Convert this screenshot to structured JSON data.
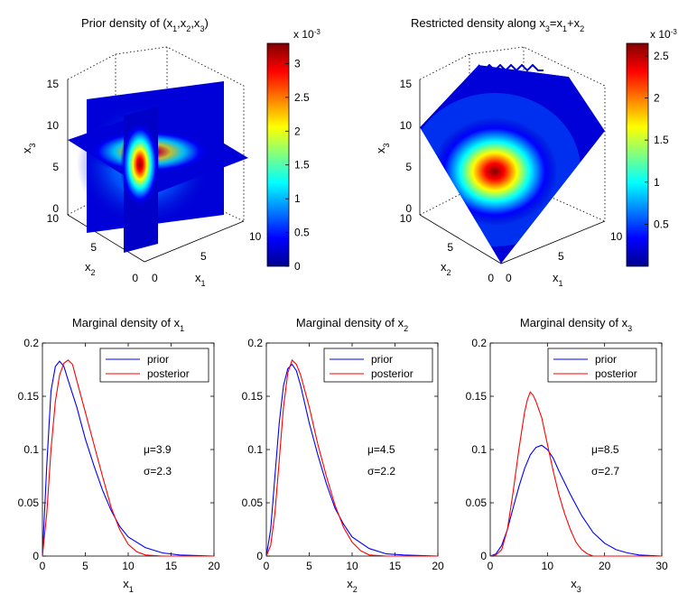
{
  "figure": {
    "panel1": {
      "title_main": "Prior density of (x",
      "title_sub": [
        "1",
        "2",
        "3"
      ],
      "sep1": ",x",
      "sep2": ",x",
      "tail": ")",
      "x3_label": "x",
      "x3_sub": "3",
      "x2_label": "x",
      "x2_sub": "2",
      "x1_label": "x",
      "x1_sub": "1",
      "x3_ticks": [
        "15",
        "10",
        "5",
        "0"
      ],
      "x2_ticks": [
        "10",
        "5",
        "0"
      ],
      "x1_ticks": [
        "0",
        "5",
        "10"
      ],
      "colorbar": {
        "multiplier": "x 10",
        "exponent": "-3",
        "ticks": [
          "3",
          "2.5",
          "2",
          "1.5",
          "1",
          "0.5",
          "0"
        ],
        "range": [
          0,
          3.3
        ]
      }
    },
    "panel2": {
      "title_main": "Restricted density along x",
      "title_sub": "3",
      "eq": "=x",
      "sub1": "1",
      "plus": "+x",
      "sub2": "2",
      "x3_label": "x",
      "x3_sub": "3",
      "x2_label": "x",
      "x2_sub": "2",
      "x1_label": "x",
      "x1_sub": "1",
      "x3_ticks": [
        "15",
        "10",
        "5",
        "0"
      ],
      "x2_ticks": [
        "10",
        "5",
        "0"
      ],
      "x1_ticks": [
        "0",
        "5",
        "10"
      ],
      "colorbar": {
        "multiplier": "x 10",
        "exponent": "-3",
        "ticks": [
          "2.5",
          "2",
          "1.5",
          "1",
          "0.5"
        ],
        "range": [
          0,
          2.65
        ]
      }
    }
  },
  "colors": {
    "prior": "#0000ff",
    "posterior": "#ff0000"
  },
  "chart_data": [
    {
      "type": "line",
      "title": "Marginal density of x",
      "title_sub": "1",
      "xlabel": "x",
      "xlabel_sub": "1",
      "xlim": [
        0,
        20
      ],
      "ylim": [
        0,
        0.2
      ],
      "xticks": [
        0,
        5,
        10,
        15,
        20
      ],
      "yticks": [
        0,
        0.05,
        0.1,
        0.15,
        0.2
      ],
      "legend": [
        "prior",
        "posterior"
      ],
      "mu_text": "μ=3.9",
      "sigma_text": "σ=2.3",
      "series": [
        {
          "name": "prior",
          "color": "#0000ff",
          "x": [
            0,
            0.5,
            1,
            1.5,
            2,
            2.5,
            3,
            4,
            5,
            6,
            7,
            8,
            9,
            10,
            12,
            14,
            16,
            20
          ],
          "y": [
            0,
            0.085,
            0.155,
            0.178,
            0.183,
            0.178,
            0.165,
            0.14,
            0.11,
            0.085,
            0.062,
            0.043,
            0.028,
            0.018,
            0.008,
            0.003,
            0.001,
            0
          ]
        },
        {
          "name": "posterior",
          "color": "#ff0000",
          "x": [
            0,
            0.5,
            1,
            1.5,
            2,
            2.5,
            3,
            3.5,
            4,
            5,
            6,
            7,
            8,
            9,
            10,
            11,
            12,
            14,
            20
          ],
          "y": [
            0,
            0.04,
            0.1,
            0.145,
            0.17,
            0.181,
            0.184,
            0.18,
            0.165,
            0.135,
            0.105,
            0.075,
            0.046,
            0.025,
            0.011,
            0.004,
            0.001,
            0,
            0
          ]
        }
      ]
    },
    {
      "type": "line",
      "title": "Marginal density of x",
      "title_sub": "2",
      "xlabel": "x",
      "xlabel_sub": "2",
      "xlim": [
        0,
        20
      ],
      "ylim": [
        0,
        0.2
      ],
      "xticks": [
        0,
        5,
        10,
        15,
        20
      ],
      "yticks": [
        0,
        0.05,
        0.1,
        0.15,
        0.2
      ],
      "legend": [
        "prior",
        "posterior"
      ],
      "mu_text": "μ=4.5",
      "sigma_text": "σ=2.2",
      "series": [
        {
          "name": "prior",
          "color": "#0000ff",
          "x": [
            0,
            0.5,
            1,
            1.5,
            2,
            2.5,
            3,
            3.5,
            4,
            5,
            6,
            7,
            8,
            9,
            10,
            12,
            14,
            16,
            20
          ],
          "y": [
            0,
            0.025,
            0.075,
            0.125,
            0.16,
            0.176,
            0.18,
            0.174,
            0.16,
            0.125,
            0.095,
            0.068,
            0.045,
            0.03,
            0.018,
            0.007,
            0.002,
            0.001,
            0
          ]
        },
        {
          "name": "posterior",
          "color": "#ff0000",
          "x": [
            0,
            0.5,
            1,
            1.5,
            2,
            2.5,
            3,
            3.5,
            4,
            5,
            6,
            7,
            8,
            9,
            10,
            11,
            12,
            14,
            20
          ],
          "y": [
            0,
            0.01,
            0.04,
            0.09,
            0.14,
            0.172,
            0.184,
            0.18,
            0.17,
            0.14,
            0.105,
            0.075,
            0.048,
            0.027,
            0.013,
            0.005,
            0.001,
            0,
            0
          ]
        }
      ]
    },
    {
      "type": "line",
      "title": "Marginal density of x",
      "title_sub": "3",
      "xlabel": "x",
      "xlabel_sub": "3",
      "xlim": [
        0,
        30
      ],
      "ylim": [
        0,
        0.2
      ],
      "xticks": [
        0,
        10,
        20,
        30
      ],
      "yticks": [
        0,
        0.05,
        0.1,
        0.15,
        0.2
      ],
      "legend": [
        "prior",
        "posterior"
      ],
      "mu_text": "μ=8.5",
      "sigma_text": "σ=2.7",
      "series": [
        {
          "name": "prior",
          "color": "#0000ff",
          "x": [
            0,
            1,
            2,
            3,
            4,
            5,
            6,
            7,
            8,
            9,
            10,
            11,
            12,
            14,
            16,
            18,
            20,
            22,
            24,
            26,
            30
          ],
          "y": [
            0,
            0.002,
            0.01,
            0.025,
            0.045,
            0.065,
            0.082,
            0.095,
            0.102,
            0.104,
            0.1,
            0.092,
            0.08,
            0.058,
            0.038,
            0.022,
            0.012,
            0.006,
            0.003,
            0.001,
            0
          ]
        },
        {
          "name": "posterior",
          "color": "#ff0000",
          "x": [
            0,
            1,
            2,
            3,
            4,
            5,
            6,
            6.5,
            7,
            7.5,
            8,
            9,
            10,
            11,
            12,
            13,
            14,
            15,
            16,
            17,
            18,
            30
          ],
          "y": [
            0,
            0.001,
            0.006,
            0.025,
            0.06,
            0.1,
            0.135,
            0.147,
            0.154,
            0.151,
            0.145,
            0.13,
            0.105,
            0.08,
            0.058,
            0.04,
            0.025,
            0.013,
            0.006,
            0.002,
            0,
            0
          ]
        }
      ]
    }
  ]
}
